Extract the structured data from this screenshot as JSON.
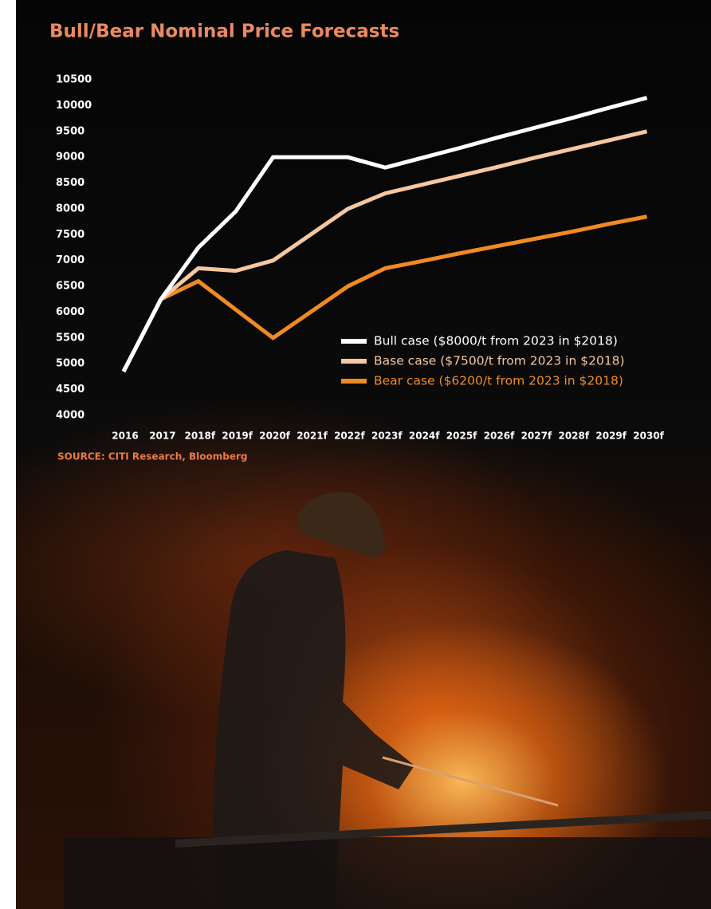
{
  "chart_data": {
    "type": "line",
    "title": "Bull/Bear Nominal Price Forecasts",
    "source": "SOURCE: CITI Research, Bloomberg",
    "categories": [
      "2016",
      "2017",
      "2018f",
      "2019f",
      "2020f",
      "2021f",
      "2022f",
      "2023f",
      "2024f",
      "2025f",
      "2026f",
      "2027f",
      "2028f",
      "2029f",
      "2030f"
    ],
    "series": [
      {
        "name": "Bull case ($8000/t from 2023 in $2018)",
        "color": "#ffffff",
        "values": [
          4850,
          6250,
          7250,
          7950,
          9000,
          9000,
          9000,
          8800,
          8990,
          9180,
          9380,
          9570,
          9760,
          9960,
          10150
        ]
      },
      {
        "name": "Base case ($7500/t from 2023 in $2018)",
        "color": "#f6c7a0",
        "values": [
          4850,
          6250,
          6850,
          6800,
          7000,
          7500,
          8000,
          8300,
          8470,
          8640,
          8810,
          8990,
          9160,
          9330,
          9500
        ]
      },
      {
        "name": "Bear case ($6200/t from 2023 in $2018)",
        "color": "#f08a24",
        "values": [
          4850,
          6250,
          6600,
          6050,
          5500,
          6000,
          6500,
          6850,
          6990,
          7140,
          7280,
          7420,
          7560,
          7710,
          7850
        ]
      }
    ],
    "ylim": [
      4000,
      10500
    ],
    "yticks": [
      4000,
      4500,
      5000,
      5500,
      6000,
      6500,
      7000,
      7500,
      8000,
      8500,
      9000,
      9500,
      10000,
      10500
    ]
  }
}
